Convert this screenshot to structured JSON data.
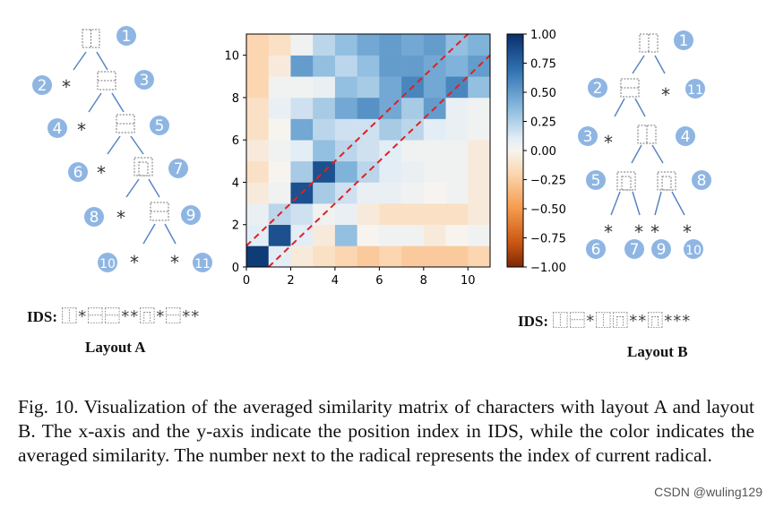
{
  "chart_data": {
    "type": "heatmap",
    "title": "",
    "xlabel": "",
    "ylabel": "",
    "x_range": [
      0,
      11
    ],
    "y_range": [
      0,
      11
    ],
    "x_ticks": [
      0,
      2,
      4,
      6,
      8,
      10
    ],
    "y_ticks": [
      0,
      2,
      4,
      6,
      8,
      10
    ],
    "colorbar": {
      "range": [
        -1.0,
        1.0
      ],
      "ticks": [
        "1.00",
        "0.75",
        "0.50",
        "0.25",
        "0.00",
        "−0.25",
        "−0.50",
        "−0.75",
        "−1.00"
      ],
      "colormap": "RdBu-like (orange to white to blue)"
    },
    "matrix_rows_bottom_to_top": [
      [
        0.95,
        0.15,
        -0.05,
        -0.1,
        -0.15,
        -0.2,
        -0.15,
        -0.2,
        -0.2,
        -0.2,
        -0.15
      ],
      [
        0.15,
        0.85,
        0.15,
        -0.05,
        0.35,
        0.0,
        0.05,
        0.05,
        -0.05,
        0.0,
        0.05
      ],
      [
        0.1,
        0.25,
        0.2,
        0.05,
        0.1,
        -0.05,
        -0.1,
        -0.1,
        -0.1,
        -0.1,
        -0.05
      ],
      [
        -0.05,
        0.05,
        0.85,
        0.3,
        0.2,
        0.1,
        0.1,
        0.05,
        0.0,
        0.05,
        -0.05
      ],
      [
        -0.1,
        0.0,
        0.3,
        0.85,
        0.4,
        0.25,
        0.15,
        0.1,
        0.05,
        0.05,
        -0.05
      ],
      [
        -0.05,
        0.05,
        0.15,
        0.35,
        0.25,
        0.2,
        0.15,
        0.05,
        0.05,
        0.05,
        -0.05
      ],
      [
        -0.1,
        0.0,
        0.45,
        0.25,
        0.2,
        0.2,
        0.3,
        0.25,
        0.15,
        0.1,
        0.05
      ],
      [
        -0.1,
        0.1,
        0.2,
        0.3,
        0.45,
        0.55,
        0.45,
        0.3,
        0.5,
        0.1,
        0.05
      ],
      [
        -0.15,
        0.05,
        0.05,
        0.1,
        0.35,
        0.3,
        0.45,
        0.6,
        0.45,
        0.6,
        0.35
      ],
      [
        -0.15,
        -0.05,
        0.5,
        0.35,
        0.25,
        0.35,
        0.5,
        0.5,
        0.45,
        0.4,
        0.5
      ],
      [
        -0.15,
        -0.1,
        0.05,
        0.25,
        0.35,
        0.45,
        0.5,
        0.45,
        0.5,
        0.35,
        0.4
      ]
    ],
    "reference_lines": [
      {
        "style": "red dashed",
        "from": [
          0,
          1
        ],
        "to": [
          10,
          11
        ]
      },
      {
        "style": "red dashed",
        "from": [
          1,
          0
        ],
        "to": [
          11,
          10
        ]
      }
    ]
  },
  "layout_a": {
    "title": "Layout A",
    "ids_label": "IDS:",
    "ids_sequence": "⿰*⿱⿱**⿵*⿱**",
    "indices": [
      "1",
      "2",
      "3",
      "4",
      "5",
      "6",
      "7",
      "8",
      "9",
      "10",
      "11"
    ],
    "star": "*"
  },
  "layout_b": {
    "title": "Layout B",
    "ids_label": "IDS:",
    "ids_sequence": "⿰⿱*⿰⿵**⿵***",
    "indices": [
      "1",
      "2",
      "11",
      "3",
      "4",
      "5",
      "8",
      "6",
      "7",
      "9",
      "10"
    ],
    "star": "*"
  },
  "caption": "Fig. 10.  Visualization of the averaged similarity matrix of characters with layout A and layout B. The x-axis and the y-axis indicate the position index in IDS, while the color indicates the averaged similarity. The number next to the radical represents the index of current radical.",
  "watermark": "CSDN @wuling129",
  "colors": {
    "badge": "#8fb6e3",
    "line": "#5a86c0",
    "dashed": "#e02020"
  }
}
